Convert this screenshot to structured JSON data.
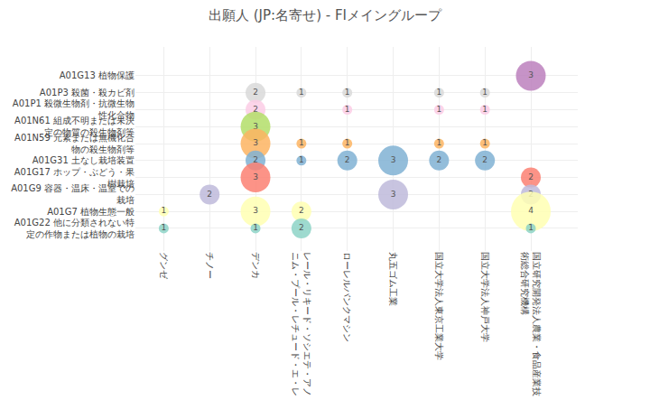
{
  "chart_data": {
    "type": "scatter",
    "marker": "circle",
    "title": "出願人 (JP:名寄せ) - FIメイングループ",
    "grid": true,
    "data_labels": true,
    "categories": [
      "グンゼ",
      "チノー",
      "デンカ",
      "レール・リキード・ソシエテ・アノニム・プール・レチュード・エ・レ",
      "ローレルバンクマシン",
      "丸五ゴム工業",
      "国立大学法人東京工業大学",
      "国立大学法人神戸大学",
      "国立研究開発法人農業・食品産業技術総合研究機構"
    ],
    "series": [
      {
        "name": "A01G13 植物保護",
        "color": "#bc80bd",
        "values": [
          null,
          null,
          null,
          null,
          null,
          null,
          null,
          null,
          3
        ]
      },
      {
        "name": "A01P3 殺菌・殺カビ剤",
        "color": "#d9d9d9",
        "values": [
          null,
          null,
          2,
          1,
          1,
          null,
          1,
          1,
          null
        ]
      },
      {
        "name": "A01P1 殺微生物剤・抗微生物性化合物",
        "color": "#fccde5",
        "values": [
          null,
          null,
          2,
          null,
          1,
          null,
          1,
          1,
          null
        ]
      },
      {
        "name": "A01N61 組成不明または未決定の物質の殺生物剤等",
        "color": "#b3de69",
        "values": [
          null,
          null,
          3,
          null,
          null,
          null,
          null,
          null,
          null
        ]
      },
      {
        "name": "A01N59 元素または無機化合物の殺生物剤等",
        "color": "#fdb462",
        "values": [
          null,
          null,
          3,
          1,
          1,
          null,
          1,
          1,
          null
        ]
      },
      {
        "name": "A01G31 土なし栽培装置",
        "color": "#80b1d3",
        "values": [
          null,
          null,
          2,
          1,
          2,
          3,
          2,
          2,
          null
        ]
      },
      {
        "name": "A01G17 ホップ・ぶどう・果樹栽培",
        "color": "#fb8072",
        "values": [
          null,
          null,
          3,
          null,
          null,
          null,
          null,
          null,
          2
        ]
      },
      {
        "name": "A01G9 容器・温床・温室での栽培",
        "color": "#bebada",
        "values": [
          null,
          2,
          null,
          null,
          null,
          3,
          null,
          null,
          2
        ]
      },
      {
        "name": "A01G7 植物生態一般",
        "color": "#ffffb3",
        "values": [
          1,
          null,
          3,
          2,
          null,
          null,
          null,
          null,
          4
        ]
      },
      {
        "name": "A01G22 他に分類されない特定の作物または植物の栽培",
        "color": "#8dd3c7",
        "values": [
          1,
          null,
          1,
          2,
          null,
          null,
          null,
          null,
          1
        ]
      }
    ]
  }
}
